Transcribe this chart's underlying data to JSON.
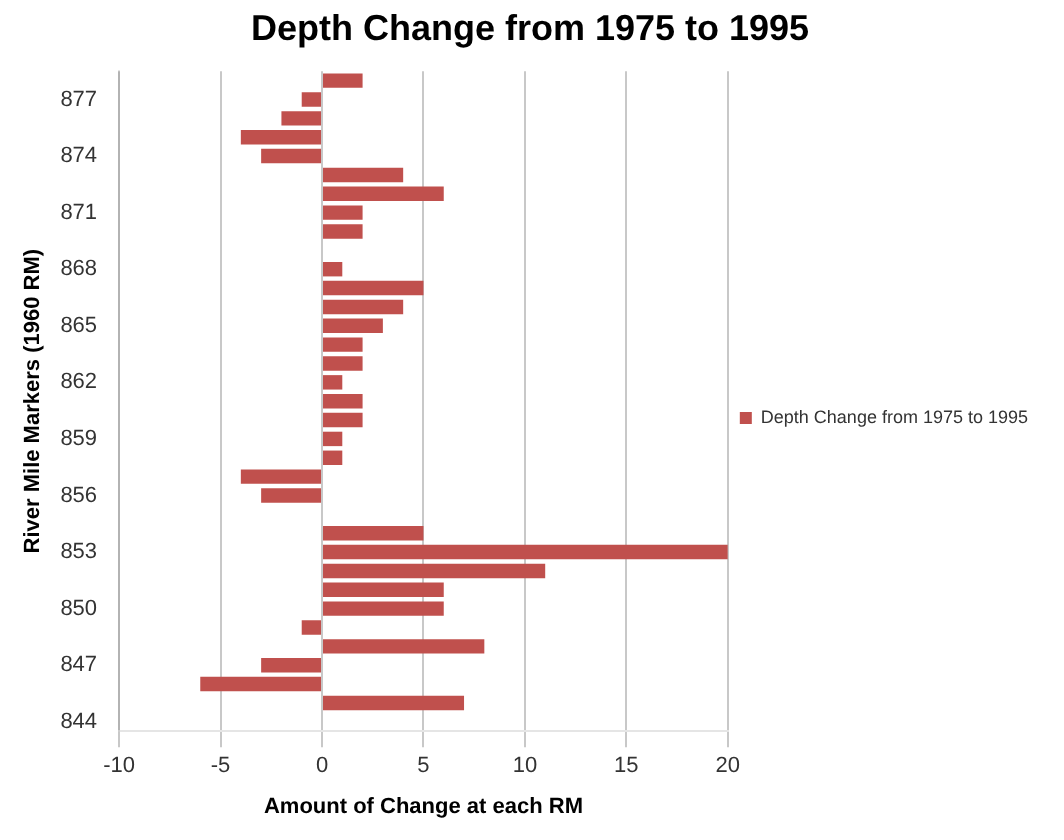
{
  "chart_data": {
    "type": "bar",
    "orientation": "horizontal",
    "title": "Depth Change from 1975 to 1995",
    "xlabel": "Amount of Change at each RM",
    "ylabel": "River Mile Markers (1960 RM)",
    "categories": [
      null,
      "877",
      null,
      null,
      "874",
      null,
      null,
      "871",
      null,
      null,
      "868",
      null,
      null,
      "865",
      null,
      null,
      "862",
      null,
      null,
      "859",
      null,
      null,
      "856",
      null,
      null,
      "853",
      null,
      null,
      "850",
      null,
      null,
      "847",
      null,
      null,
      "844"
    ],
    "series": [
      {
        "name": "Depth Change from 1975 to 1995",
        "color": "#c0504d",
        "values": [
          2,
          -1,
          -2,
          -4,
          -3,
          4,
          6,
          2,
          2,
          0,
          1,
          5,
          4,
          3,
          2,
          2,
          1,
          2,
          2,
          1,
          1,
          -4,
          -3,
          0,
          5,
          20,
          11,
          6,
          6,
          -1,
          8,
          -3,
          -6,
          7,
          0
        ]
      }
    ],
    "xlim": [
      -10,
      20
    ],
    "xticks": [
      -10,
      -5,
      0,
      5,
      10,
      15,
      20
    ],
    "grid": "x",
    "legend": "right"
  }
}
